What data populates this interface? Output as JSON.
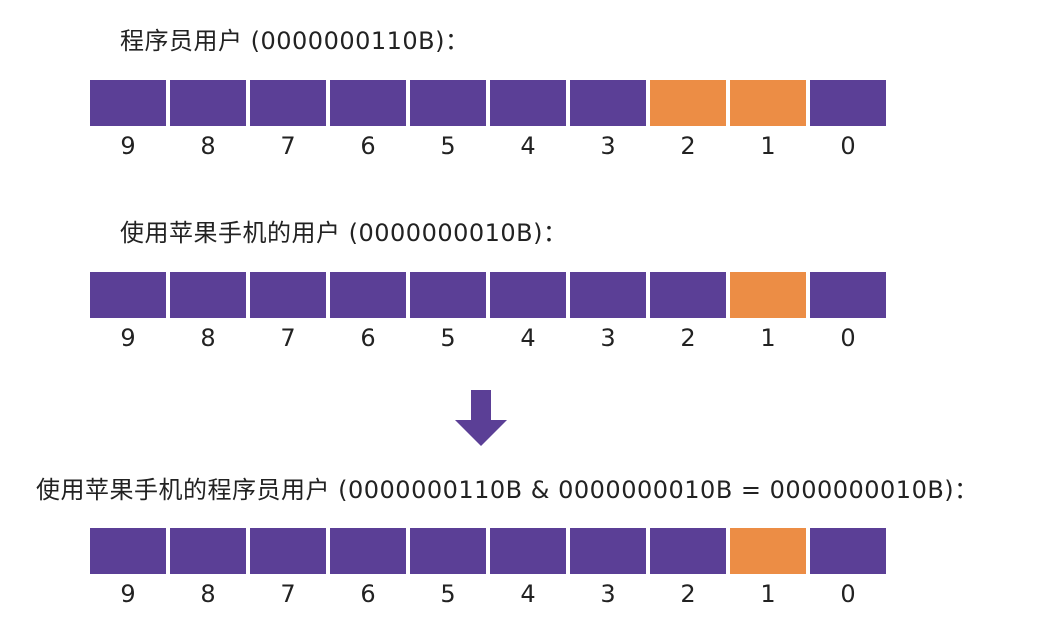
{
  "diagram": {
    "colors": {
      "bit_off": "#5b3f96",
      "bit_on": "#ec8d45",
      "arrow": "#5b3f96"
    },
    "sections": [
      {
        "title": "程序员用户 (0000000110B)：",
        "bits": [
          0,
          0,
          0,
          0,
          0,
          0,
          0,
          1,
          1,
          0
        ]
      },
      {
        "title": "使用苹果手机的用户 (0000000010B)：",
        "bits": [
          0,
          0,
          0,
          0,
          0,
          0,
          0,
          0,
          1,
          0
        ]
      },
      {
        "title": "使用苹果手机的程序员用户 (0000000110B & 0000000010B = 0000000010B)：",
        "bits": [
          0,
          0,
          0,
          0,
          0,
          0,
          0,
          0,
          1,
          0
        ]
      }
    ],
    "bit_labels": [
      "9",
      "8",
      "7",
      "6",
      "5",
      "4",
      "3",
      "2",
      "1",
      "0"
    ],
    "arrow_icon": "down-arrow-icon"
  }
}
